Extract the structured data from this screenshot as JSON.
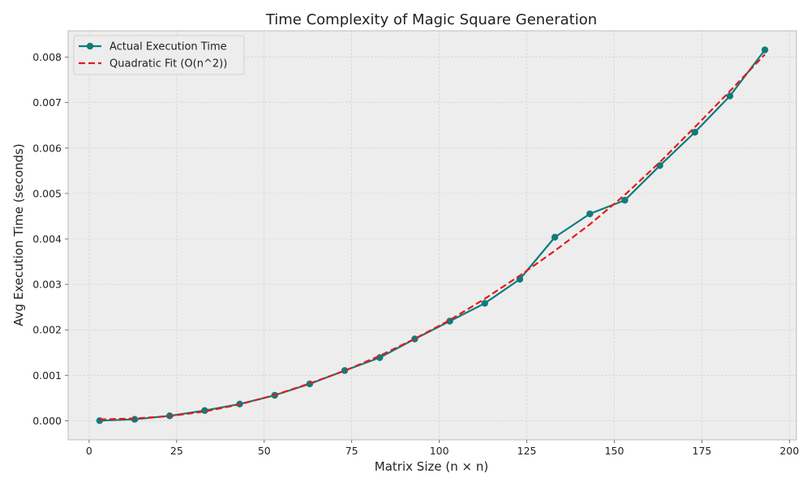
{
  "chart_data": {
    "type": "line",
    "title": "Time Complexity of Magic Square Generation",
    "xlabel": "Matrix Size (n × n)",
    "ylabel": "Avg Execution Time (seconds)",
    "xlim": [
      -6,
      202
    ],
    "ylim": [
      -0.00042,
      0.00858
    ],
    "x_ticks": [
      0,
      25,
      50,
      75,
      100,
      125,
      150,
      175,
      200
    ],
    "x_tick_labels": [
      "0",
      "25",
      "50",
      "75",
      "100",
      "125",
      "150",
      "175",
      "200"
    ],
    "y_ticks": [
      0,
      0.001,
      0.002,
      0.003,
      0.004,
      0.005,
      0.006,
      0.007,
      0.008
    ],
    "y_tick_labels": [
      "0.000",
      "0.001",
      "0.002",
      "0.003",
      "0.004",
      "0.005",
      "0.006",
      "0.007",
      "0.008"
    ],
    "grid": true,
    "legend_position": "top-left",
    "x": [
      3,
      13,
      23,
      33,
      43,
      53,
      63,
      73,
      83,
      93,
      103,
      113,
      123,
      133,
      143,
      153,
      163,
      173,
      183,
      193
    ],
    "series": [
      {
        "name": "Actual Execution Time",
        "color": "#0e7c7b",
        "style": "solid",
        "marker": "circle",
        "values": [
          2e-06,
          3.1e-05,
          0.000108,
          0.000225,
          0.000368,
          0.00056,
          0.000811,
          0.001104,
          0.001389,
          0.001799,
          0.002191,
          0.002584,
          0.003113,
          0.004038,
          0.004552,
          0.004852,
          0.005614,
          0.006348,
          0.007144,
          0.008159
        ]
      },
      {
        "name": "Quadratic Fit (O(n^2))",
        "color": "#e41a1c",
        "style": "dashed",
        "marker": "none",
        "values": [
          3e-05,
          5e-05,
          0.000101,
          0.000203,
          0.00036,
          0.000565,
          0.000821,
          0.0011,
          0.001429,
          0.001803,
          0.002215,
          0.002684,
          0.003193,
          0.003739,
          0.004321,
          0.004969,
          0.00569,
          0.00646,
          0.007252,
          0.00806
        ]
      }
    ]
  }
}
